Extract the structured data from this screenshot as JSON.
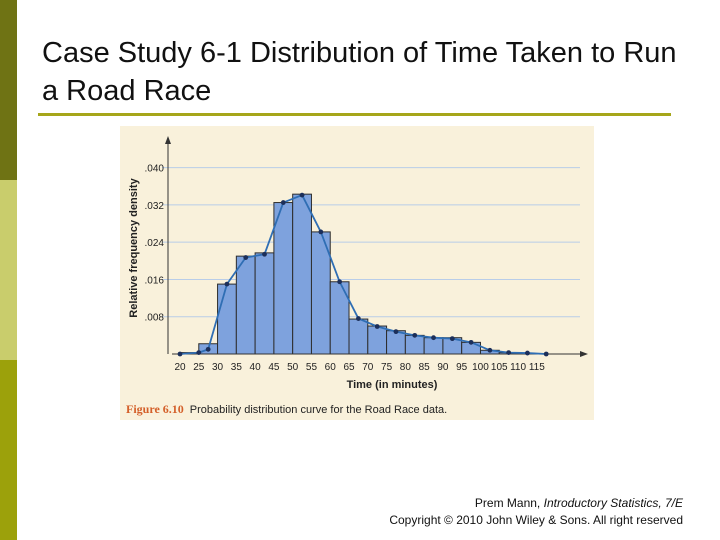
{
  "slide": {
    "title": "Case Study 6-1 Distribution of Time Taken to Run a Road Race",
    "caption_label": "Figure 6.10",
    "caption_text": "Probability distribution curve for the Road Race data.",
    "credit": {
      "author": "Prem Mann, ",
      "book": "Introductory Statistics, 7/E",
      "copyright": "Copyright © 2010 John Wiley & Sons. All right reserved"
    }
  },
  "chart_data": {
    "type": "bar",
    "xlabel": "Time (in minutes)",
    "ylabel": "Relative frequency density",
    "x_ticks": [
      "20",
      "25",
      "30",
      "35",
      "40",
      "45",
      "50",
      "55",
      "60",
      "65",
      "70",
      "75",
      "80",
      "85",
      "90",
      "95",
      "100",
      "105",
      "110",
      "115"
    ],
    "y_ticks": [
      ".008",
      ".016",
      ".024",
      ".032",
      ".040"
    ],
    "ylim": [
      0,
      0.044
    ],
    "bins": [
      {
        "from": 20,
        "to": 25,
        "value": 0.0003
      },
      {
        "from": 25,
        "to": 30,
        "value": 0.0022
      },
      {
        "from": 30,
        "to": 35,
        "value": 0.015
      },
      {
        "from": 35,
        "to": 40,
        "value": 0.021
      },
      {
        "from": 40,
        "to": 45,
        "value": 0.0217
      },
      {
        "from": 45,
        "to": 50,
        "value": 0.0325
      },
      {
        "from": 50,
        "to": 55,
        "value": 0.0343
      },
      {
        "from": 55,
        "to": 60,
        "value": 0.0262
      },
      {
        "from": 60,
        "to": 65,
        "value": 0.0155
      },
      {
        "from": 65,
        "to": 70,
        "value": 0.0075
      },
      {
        "from": 70,
        "to": 75,
        "value": 0.006
      },
      {
        "from": 75,
        "to": 80,
        "value": 0.005
      },
      {
        "from": 80,
        "to": 85,
        "value": 0.004
      },
      {
        "from": 85,
        "to": 90,
        "value": 0.0035
      },
      {
        "from": 90,
        "to": 95,
        "value": 0.0035
      },
      {
        "from": 95,
        "to": 100,
        "value": 0.0025
      },
      {
        "from": 100,
        "to": 105,
        "value": 0.0008
      },
      {
        "from": 105,
        "to": 110,
        "value": 0.0003
      }
    ],
    "curve": {
      "x": [
        20,
        25,
        27.5,
        32.5,
        37.5,
        42.5,
        47.5,
        52.5,
        57.5,
        62.5,
        67.5,
        72.5,
        77.5,
        82.5,
        87.5,
        92.5,
        97.5,
        102.5,
        107.5,
        112.5,
        117.5
      ],
      "y": [
        0.0,
        0.0003,
        0.001,
        0.015,
        0.0207,
        0.0214,
        0.0325,
        0.0341,
        0.0262,
        0.0155,
        0.0076,
        0.0059,
        0.0048,
        0.004,
        0.0035,
        0.0033,
        0.0025,
        0.0008,
        0.0003,
        0.0002,
        0.0
      ]
    },
    "colors": {
      "bar": "#7ea2dd",
      "bar_edge": "#2d2d2d",
      "curve": "#2f6eb4",
      "grid": "#b9cde8"
    },
    "grid": true
  }
}
